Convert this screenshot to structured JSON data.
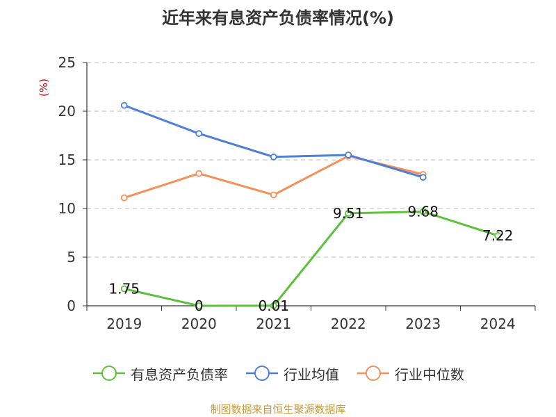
{
  "chart_data": {
    "type": "line",
    "title": "近年来有息资产负债率情况(%)",
    "ylabel": "(%)",
    "categories": [
      "2019",
      "2020",
      "2021",
      "2022",
      "2023",
      "2024"
    ],
    "ylim": [
      0,
      25
    ],
    "yticks": [
      0,
      5,
      10,
      15,
      20,
      25
    ],
    "grid": true,
    "legend_position": "bottom",
    "series": [
      {
        "name": "有息资产负债率",
        "color": "#5cc03a",
        "values": [
          1.75,
          0,
          0.01,
          9.51,
          9.68,
          7.22
        ],
        "labels": [
          "1.75",
          "0",
          "0.01",
          "9.51",
          "9.68",
          "7.22"
        ]
      },
      {
        "name": "行业均值",
        "color": "#4e7fd9",
        "values": [
          20.6,
          17.7,
          15.3,
          15.5,
          13.2,
          null
        ]
      },
      {
        "name": "行业中位数",
        "color": "#f5905a",
        "values": [
          11.1,
          13.6,
          11.4,
          15.4,
          13.5,
          null
        ]
      }
    ]
  },
  "source_note": "制图数据来自恒生聚源数据库"
}
